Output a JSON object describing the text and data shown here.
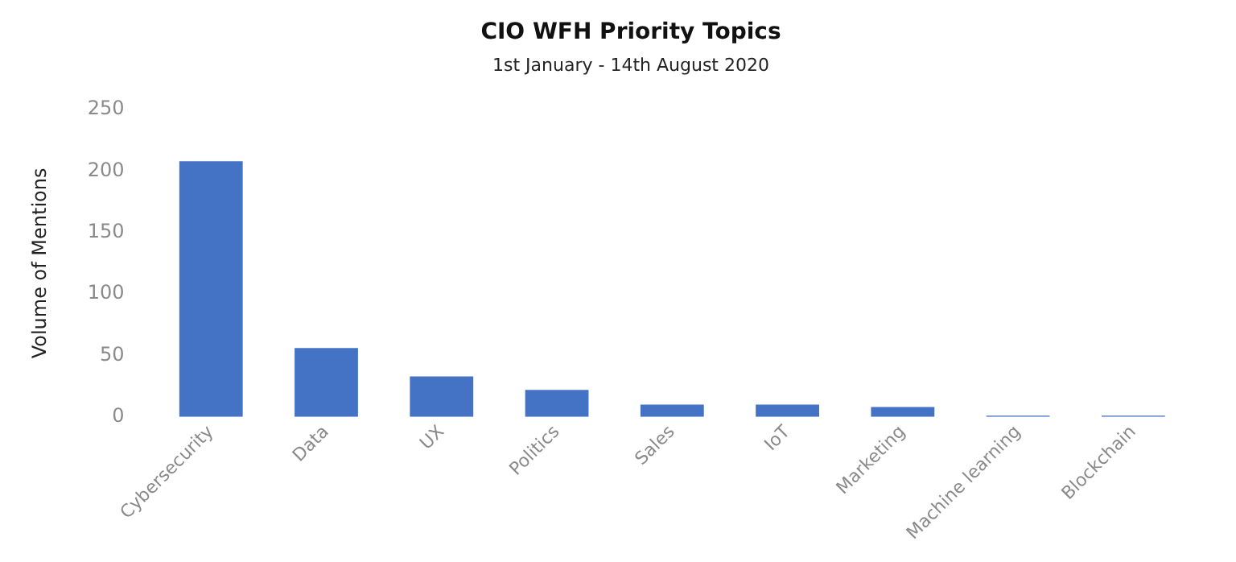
{
  "chart_data": {
    "type": "bar",
    "title": "CIO WFH Priority Topics",
    "subtitle": "1st January - 14th August 2020",
    "ylabel": "Volume of Mentions",
    "categories": [
      "Cybersecurity",
      "Data",
      "UX",
      "Politics",
      "Sales",
      "IoT",
      "Marketing",
      "Machine learning",
      "Blockchain"
    ],
    "values": [
      208,
      56,
      33,
      22,
      10,
      10,
      8,
      1,
      1
    ],
    "color": "#4472c4",
    "ylim": [
      0,
      250
    ],
    "yticks": [
      0,
      50,
      100,
      150,
      200,
      250
    ],
    "grid": false,
    "legend": false
  }
}
